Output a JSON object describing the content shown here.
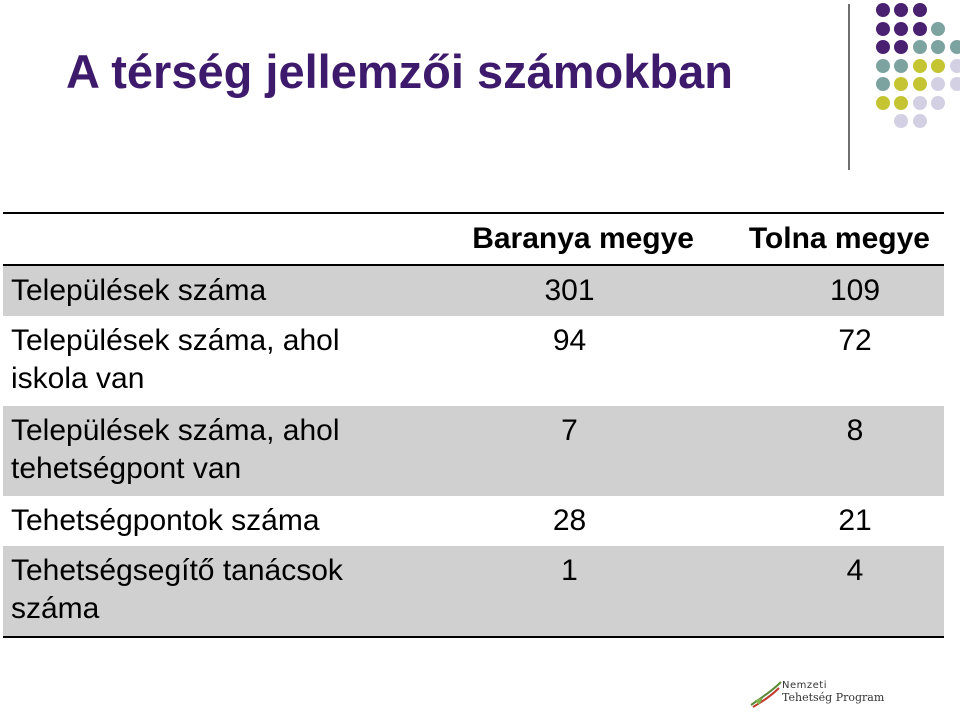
{
  "slide": {
    "title": "A  térség jellemzői számokban"
  },
  "decoration": {
    "dot_colors": {
      "purple": "#4a2070",
      "teal": "#7da3a0",
      "olive": "#c5c433",
      "lavender": "#d3d0e4"
    }
  },
  "table": {
    "headers": [
      "",
      "Baranya megye",
      "Tolna megye"
    ],
    "rows": [
      {
        "label": "Települések száma",
        "baranya": "301",
        "tolna": "109"
      },
      {
        "label": "Települések száma, ahol iskola van",
        "baranya": "94",
        "tolna": "72"
      },
      {
        "label": "Települések száma, ahol tehetségpont van",
        "baranya": "7",
        "tolna": "8"
      },
      {
        "label": "Tehetségpontok száma",
        "baranya": "28",
        "tolna": "21"
      },
      {
        "label": "Tehetségsegítő tanácsok száma",
        "baranya": "1",
        "tolna": "4"
      }
    ]
  },
  "logo": {
    "line1": "Nemzeti",
    "line2": "Tehetség Program"
  }
}
